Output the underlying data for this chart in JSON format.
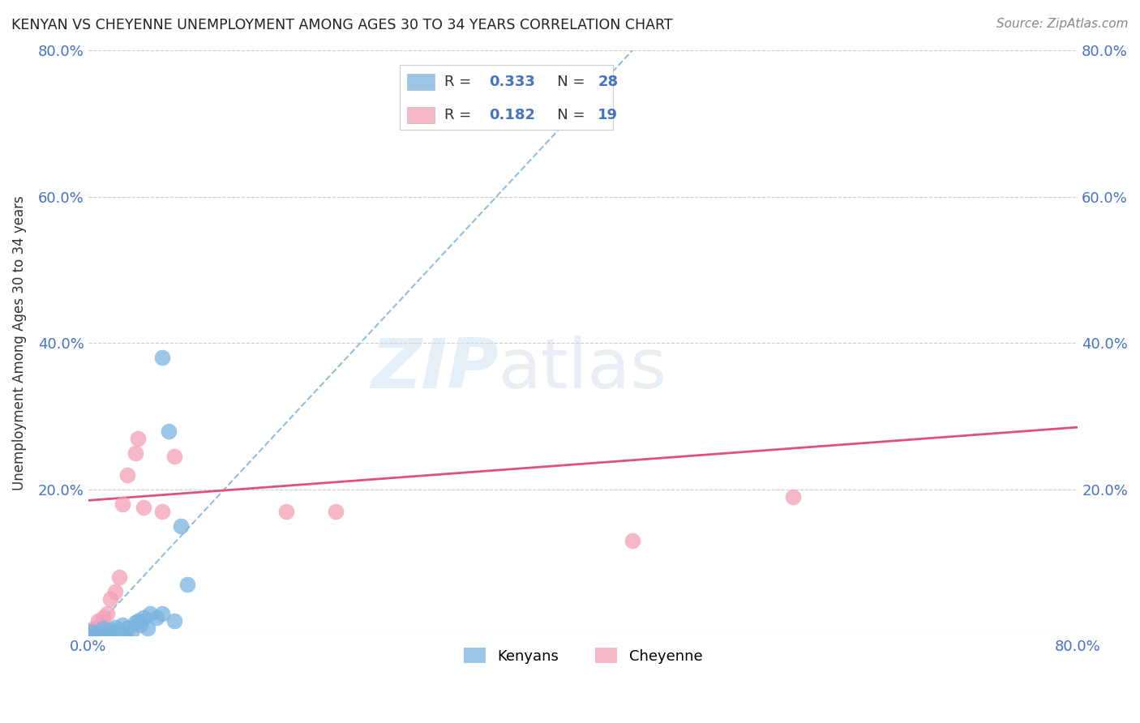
{
  "title": "KENYAN VS CHEYENNE UNEMPLOYMENT AMONG AGES 30 TO 34 YEARS CORRELATION CHART",
  "source": "Source: ZipAtlas.com",
  "ylabel": "Unemployment Among Ages 30 to 34 years",
  "xlim": [
    0.0,
    0.8
  ],
  "ylim": [
    0.0,
    0.8
  ],
  "xtick_positions": [
    0.0,
    0.1,
    0.2,
    0.3,
    0.4,
    0.5,
    0.6,
    0.7,
    0.8
  ],
  "xticklabels": [
    "0.0%",
    "",
    "",
    "",
    "",
    "",
    "",
    "",
    "80.0%"
  ],
  "ytick_positions": [
    0.0,
    0.2,
    0.4,
    0.6,
    0.8
  ],
  "yticklabels": [
    "",
    "20.0%",
    "40.0%",
    "60.0%",
    "80.0%"
  ],
  "kenyan_color": "#7ab3e0",
  "cheyenne_color": "#f4a0b5",
  "kenyan_R": 0.333,
  "kenyan_N": 28,
  "cheyenne_R": 0.182,
  "cheyenne_N": 19,
  "kenyan_scatter_x": [
    0.0,
    0.005,
    0.003,
    0.008,
    0.01,
    0.012,
    0.015,
    0.018,
    0.02,
    0.022,
    0.025,
    0.028,
    0.03,
    0.032,
    0.035,
    0.038,
    0.04,
    0.042,
    0.045,
    0.048,
    0.05,
    0.055,
    0.06,
    0.065,
    0.07,
    0.075,
    0.08,
    0.06
  ],
  "kenyan_scatter_y": [
    0.0,
    0.003,
    0.006,
    0.0,
    0.005,
    0.01,
    0.0,
    0.008,
    0.004,
    0.012,
    0.007,
    0.015,
    0.0,
    0.01,
    0.005,
    0.018,
    0.02,
    0.015,
    0.025,
    0.01,
    0.03,
    0.025,
    0.03,
    0.28,
    0.02,
    0.15,
    0.07,
    0.38
  ],
  "cheyenne_scatter_x": [
    0.0,
    0.005,
    0.008,
    0.012,
    0.015,
    0.018,
    0.022,
    0.025,
    0.028,
    0.032,
    0.038,
    0.04,
    0.045,
    0.06,
    0.07,
    0.16,
    0.2,
    0.44,
    0.57
  ],
  "cheyenne_scatter_y": [
    0.005,
    0.01,
    0.02,
    0.025,
    0.03,
    0.05,
    0.06,
    0.08,
    0.18,
    0.22,
    0.25,
    0.27,
    0.175,
    0.17,
    0.245,
    0.17,
    0.17,
    0.13,
    0.19
  ],
  "kenyan_trend_x": [
    0.0,
    0.44
  ],
  "kenyan_trend_y": [
    0.0,
    0.8
  ],
  "cheyenne_trend_x": [
    0.0,
    0.8
  ],
  "cheyenne_trend_y": [
    0.185,
    0.285
  ],
  "watermark_zip": "ZIP",
  "watermark_atlas": "atlas",
  "legend_labels": [
    "Kenyans",
    "Cheyenne"
  ],
  "axis_color": "#4472c4",
  "grid_color": "#cccccc",
  "title_color": "#222222",
  "source_color": "#888888"
}
